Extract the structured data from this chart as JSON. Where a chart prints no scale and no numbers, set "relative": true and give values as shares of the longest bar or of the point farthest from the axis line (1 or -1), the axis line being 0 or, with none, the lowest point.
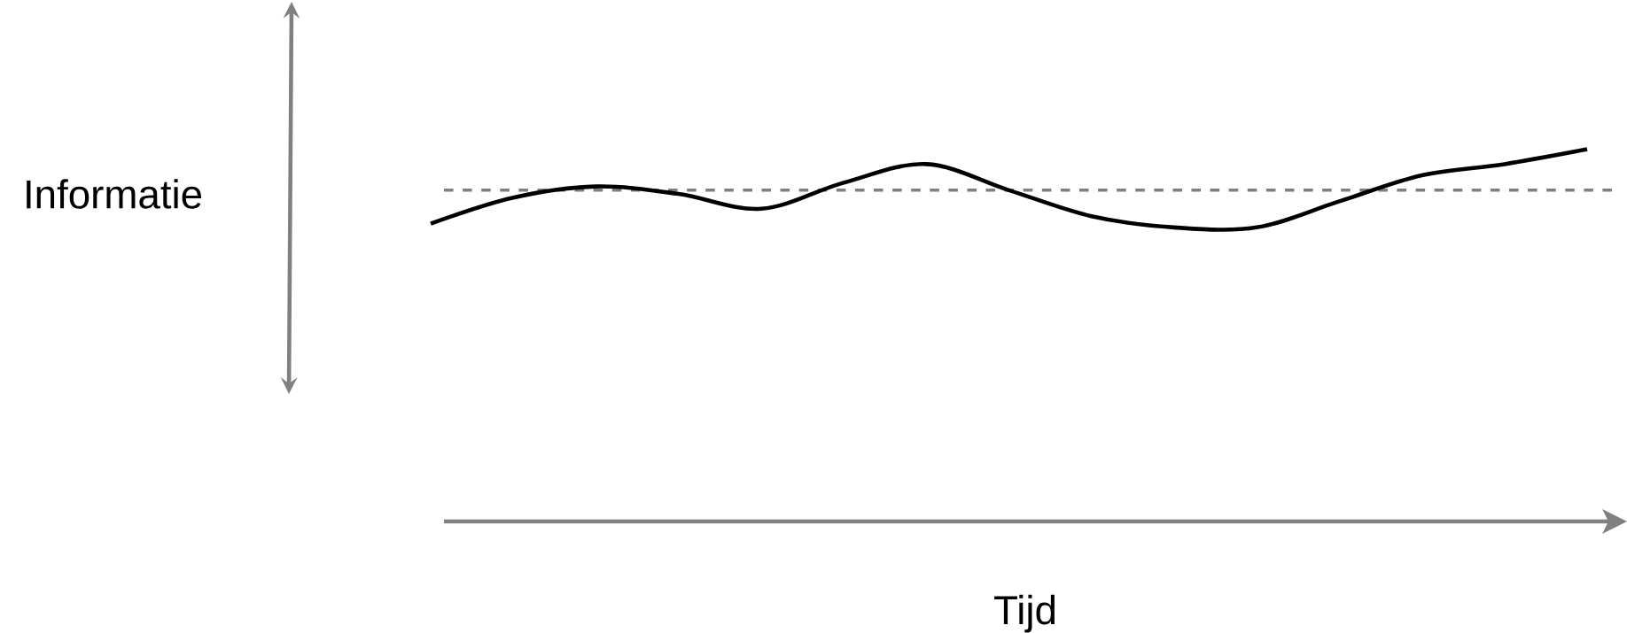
{
  "chart_data": {
    "type": "line",
    "xlabel": "Tijd",
    "annotations": [
      "Informatie"
    ],
    "relative": true,
    "categories": [
      null,
      null,
      null,
      null,
      null,
      null,
      null,
      null,
      null,
      null,
      null,
      null,
      null,
      null,
      null
    ],
    "series": [
      {
        "color": "#000000",
        "values": [
          0.8,
          0.87,
          0.9,
          0.88,
          0.84,
          0.91,
          0.96,
          0.89,
          0.82,
          0.79,
          0.79,
          0.86,
          0.93,
          0.96,
          1.0
        ]
      }
    ],
    "ref_lines": [
      {
        "axis": "y",
        "value": 0.89,
        "color": "#808080",
        "line_style": "dashed"
      }
    ]
  }
}
